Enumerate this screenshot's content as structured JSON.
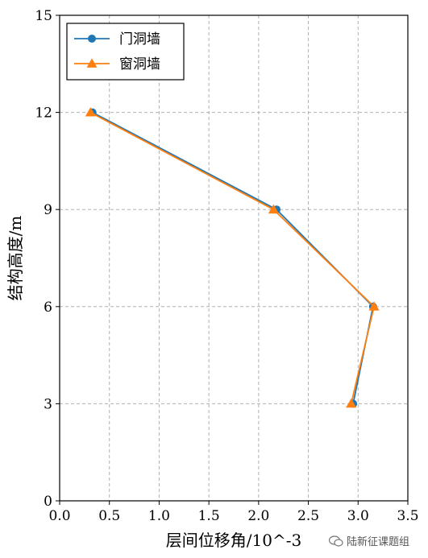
{
  "chart_data": {
    "type": "line",
    "xlabel": "层间位移角/10^-3",
    "ylabel": "结构高度/m",
    "xlim": [
      0,
      3.5
    ],
    "ylim": [
      0,
      15
    ],
    "xticks": [
      "0.0",
      "0.5",
      "1.0",
      "1.5",
      "2.0",
      "2.5",
      "3.0",
      "3.5"
    ],
    "yticks": [
      "0",
      "3",
      "6",
      "9",
      "12",
      "15"
    ],
    "grid": true,
    "legend_position": "top-left",
    "series": [
      {
        "name": "门洞墙",
        "marker": "circle",
        "color": "#1f77b4",
        "x": [
          2.95,
          3.15,
          2.18,
          0.33
        ],
        "y": [
          3,
          6,
          9,
          12
        ]
      },
      {
        "name": "窗洞墙",
        "marker": "triangle",
        "color": "#ff7f0e",
        "x": [
          2.93,
          3.16,
          2.15,
          0.31
        ],
        "y": [
          3,
          6,
          9,
          12
        ]
      }
    ]
  },
  "watermark": {
    "text": "陆新征课题组",
    "icon": "wechat-icon"
  }
}
